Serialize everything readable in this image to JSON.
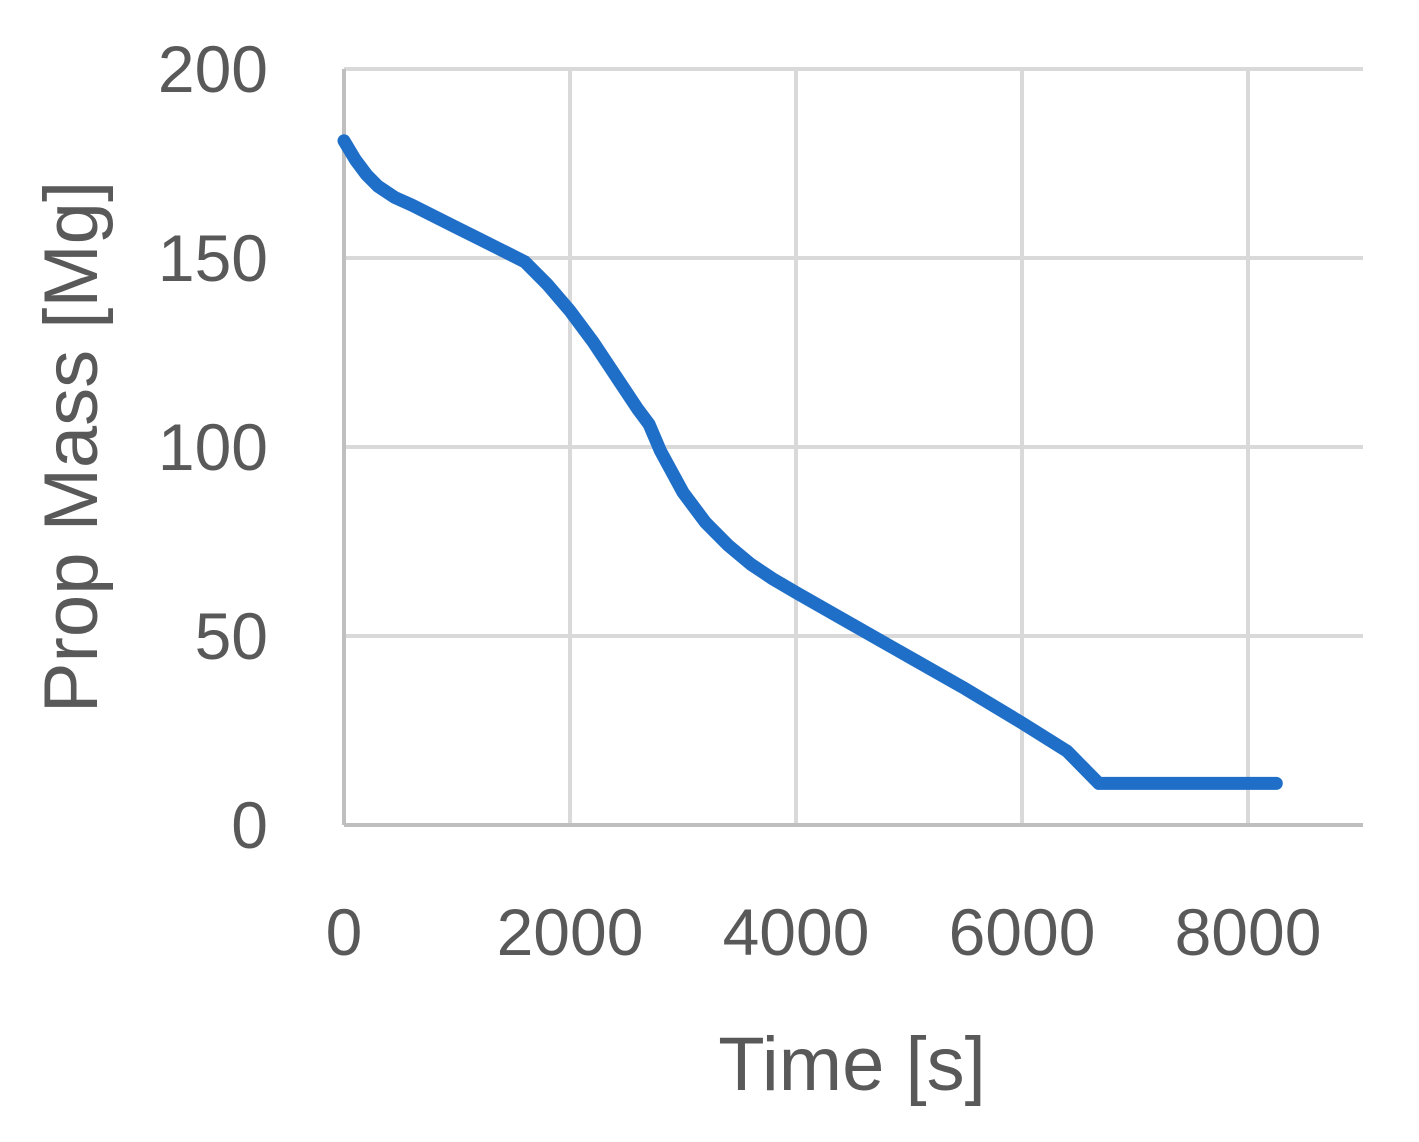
{
  "chart_data": {
    "type": "line",
    "title": "",
    "xlabel": "Time [s]",
    "ylabel": "Prop Mass [Mg]",
    "xlim": [
      0,
      9000
    ],
    "ylim": [
      0,
      200
    ],
    "xticks": [
      0,
      2000,
      4000,
      6000,
      8000
    ],
    "xtick_labels": [
      "0",
      "2000",
      "4000",
      "6000",
      "8000"
    ],
    "yticks": [
      0,
      50,
      100,
      150,
      200
    ],
    "ytick_labels": [
      "0",
      "50",
      "100",
      "150",
      "200"
    ],
    "grid": true,
    "legend": "none",
    "series": [
      {
        "color": "#1f6fc8",
        "x": [
          0,
          100,
          200,
          300,
          450,
          600,
          800,
          1000,
          1200,
          1400,
          1600,
          1800,
          2000,
          2200,
          2400,
          2600,
          2700,
          2800,
          3000,
          3200,
          3400,
          3600,
          3800,
          4000,
          4500,
          5000,
          5500,
          6000,
          6400,
          6680,
          7000,
          7500,
          8000,
          8250
        ],
        "y": [
          181,
          176,
          172,
          169,
          166,
          164,
          161,
          158,
          155,
          152,
          149,
          143,
          136,
          128,
          119,
          110,
          106,
          99,
          88,
          80,
          74,
          69,
          65,
          61.5,
          53,
          44.5,
          36,
          27,
          19.5,
          11,
          11,
          11,
          11,
          11
        ]
      }
    ]
  }
}
